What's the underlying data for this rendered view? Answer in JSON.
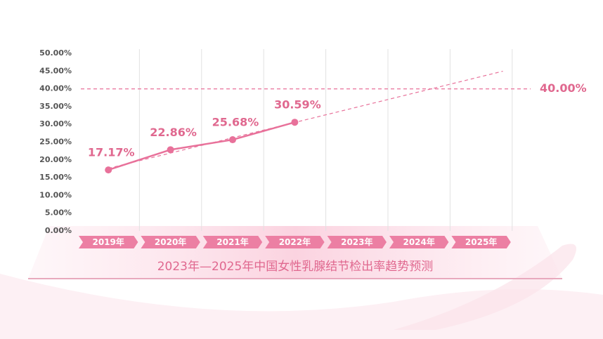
{
  "chart_data": {
    "type": "line",
    "title": "2023年—2025年中国女性乳腺结节检出率趋势预测",
    "categories": [
      "2019年",
      "2020年",
      "2021年",
      "2022年",
      "2023年",
      "2024年",
      "2025年"
    ],
    "series": [
      {
        "color": "#e8719a",
        "values": [
          17.17,
          22.86,
          25.68,
          30.59,
          null,
          null,
          null
        ],
        "value_labels": [
          "17.17%",
          "22.86%",
          "25.68%",
          "30.59%",
          null,
          null,
          null
        ]
      }
    ],
    "reference": {
      "value": 40,
      "label": "40.00%"
    },
    "trend_line": true,
    "ylim": [
      0,
      50
    ],
    "yticks": [
      {
        "value": 0,
        "label": "0.00%"
      },
      {
        "value": 5,
        "label": "5.00%"
      },
      {
        "value": 10,
        "label": "10.00%"
      },
      {
        "value": 15,
        "label": "15.00%"
      },
      {
        "value": 20,
        "label": "20.00%"
      },
      {
        "value": 25,
        "label": "25.00%"
      },
      {
        "value": 30,
        "label": "30.00%"
      },
      {
        "value": 35,
        "label": "35.00%"
      },
      {
        "value": 40,
        "label": "40.00%"
      },
      {
        "value": 45,
        "label": "45.00%"
      },
      {
        "value": 50,
        "label": "50.00%"
      }
    ]
  }
}
